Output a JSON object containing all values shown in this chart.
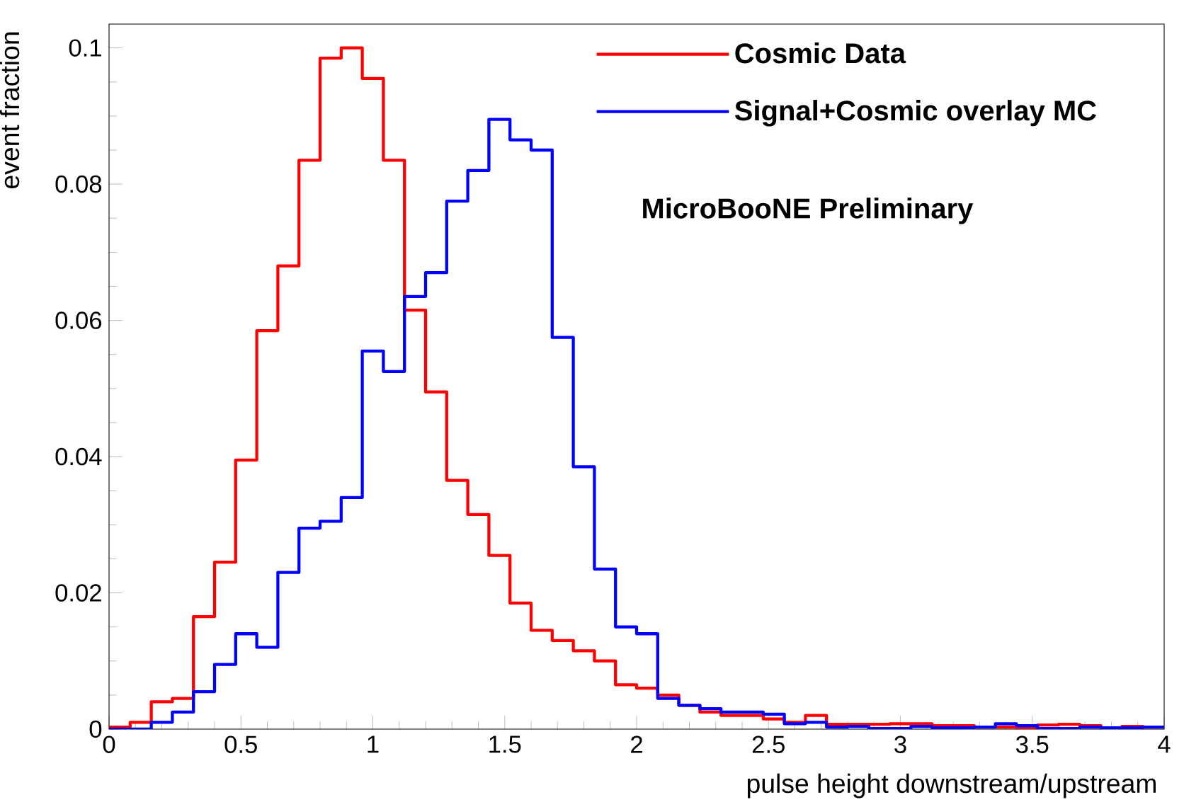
{
  "chart_data": {
    "type": "histogram",
    "xlabel": "pulse height downstream/upstream",
    "ylabel": "event fraction",
    "bins": [
      0,
      0.08,
      0.16,
      0.24,
      0.32,
      0.4,
      0.48,
      0.56,
      0.64,
      0.72,
      0.8,
      0.88,
      0.96,
      1.04,
      1.12,
      1.2,
      1.28,
      1.36,
      1.44,
      1.52,
      1.6,
      1.68,
      1.76,
      1.84,
      1.92,
      2.0,
      2.08,
      2.16,
      2.24,
      2.32,
      2.4,
      2.48,
      2.56,
      2.64,
      2.72,
      2.8,
      2.88,
      2.96,
      3.04,
      3.12,
      3.2,
      3.28,
      3.36,
      3.44,
      3.52,
      3.6,
      3.68,
      3.76,
      3.84,
      3.92,
      4.0
    ],
    "series": [
      {
        "name": "Cosmic Data",
        "color": "#ff0000",
        "values": [
          0.0003,
          0.001,
          0.004,
          0.0045,
          0.0165,
          0.0245,
          0.0395,
          0.0585,
          0.068,
          0.0835,
          0.0985,
          0.1,
          0.0955,
          0.0835,
          0.0615,
          0.0495,
          0.0365,
          0.0315,
          0.0255,
          0.0185,
          0.0145,
          0.013,
          0.0115,
          0.01,
          0.0065,
          0.006,
          0.005,
          0.0035,
          0.0025,
          0.002,
          0.002,
          0.0015,
          0.001,
          0.002,
          0.0007,
          0.0007,
          0.0007,
          0.0008,
          0.0008,
          0.0005,
          0.0005,
          0.0003,
          0.0003,
          0.0002,
          0.0006,
          0.0007,
          0.0005,
          0.0002,
          0.0004,
          0.0003
        ]
      },
      {
        "name": "Signal+Cosmic overlay MC",
        "color": "#0000ff",
        "values": [
          0,
          0,
          0.001,
          0.0025,
          0.0055,
          0.0095,
          0.014,
          0.012,
          0.023,
          0.0295,
          0.0305,
          0.034,
          0.0555,
          0.0525,
          0.0635,
          0.067,
          0.0775,
          0.082,
          0.0895,
          0.0865,
          0.085,
          0.0575,
          0.0385,
          0.0235,
          0.015,
          0.014,
          0.0045,
          0.0035,
          0.003,
          0.0025,
          0.0025,
          0.0022,
          0.0008,
          0.001,
          0.0003,
          0.0004,
          0.0001,
          0.0001,
          0.0004,
          0.0002,
          0.0002,
          0.0003,
          0.0008,
          0.0005,
          0.0001,
          0.0001,
          0.0003,
          0.0002,
          0.0002,
          0.0003
        ]
      }
    ],
    "xlim": [
      0,
      4
    ],
    "ylim": [
      0,
      0.1035
    ],
    "xticks": [
      0,
      0.5,
      1,
      1.5,
      2,
      2.5,
      3,
      3.5,
      4
    ],
    "yticks": [
      0,
      0.02,
      0.04,
      0.06,
      0.08,
      0.1
    ],
    "legend": "top right",
    "grid": false,
    "annotations": [
      "MicroBooNE Preliminary"
    ]
  }
}
